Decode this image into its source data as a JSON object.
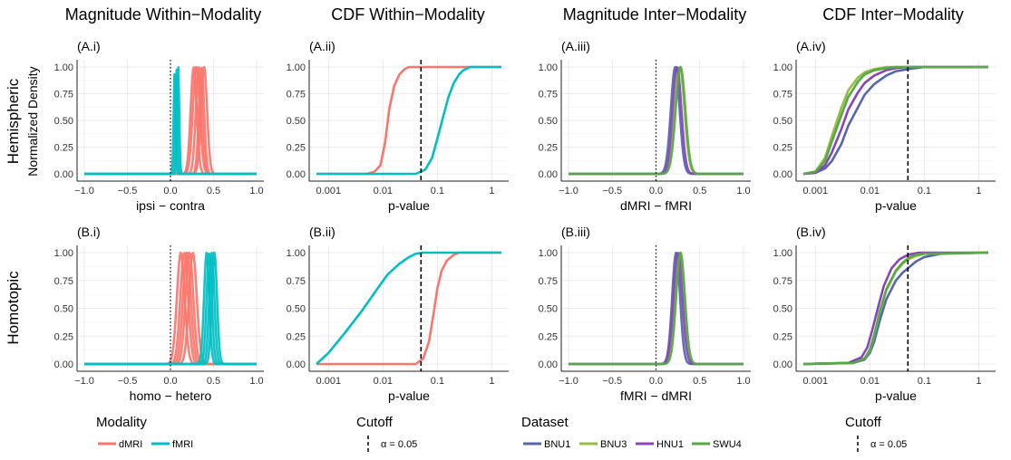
{
  "figure": {
    "column_titles": [
      "Magnitude Within−Modality",
      "CDF Within−Modality",
      "Magnitude Inter−Modality",
      "CDF Inter−Modality"
    ],
    "row_labels": [
      "Hemispheric",
      "Homotopic"
    ],
    "y_axis_label": "Normalized Density"
  },
  "legends": {
    "modality": {
      "title": "Modality",
      "items": [
        {
          "label": "dMRI",
          "color": "#F8766D"
        },
        {
          "label": "fMRI",
          "color": "#00BFC4"
        }
      ]
    },
    "cutoff_left": {
      "title": "Cutoff",
      "label": "α = 0.05"
    },
    "dataset": {
      "title": "Dataset",
      "items": [
        {
          "label": "BNU1",
          "color": "#5566AA"
        },
        {
          "label": "BNU3",
          "color": "#99BB44"
        },
        {
          "label": "HNU1",
          "color": "#8844BB"
        },
        {
          "label": "SWU4",
          "color": "#55AA44"
        }
      ]
    },
    "cutoff_right": {
      "title": "Cutoff",
      "label": "α = 0.05"
    }
  },
  "chart_data": [
    {
      "panel": "(A.i)",
      "type": "density",
      "xlabel": "ipsi − contra",
      "xlim": [
        -1,
        1
      ],
      "ylim": [
        0,
        1
      ],
      "xticks": [
        "−1.0",
        "−0.5",
        "0.0",
        "0.5",
        "1.0"
      ],
      "yticks": [
        "0.00",
        "0.25",
        "0.50",
        "0.75",
        "1.00"
      ],
      "reference_line": {
        "x": 0,
        "style": "dotted"
      },
      "series": [
        {
          "name": "dMRI",
          "curves": [
            {
              "mu": 0.27,
              "sd": 0.035
            },
            {
              "mu": 0.3,
              "sd": 0.04
            },
            {
              "mu": 0.33,
              "sd": 0.035
            },
            {
              "mu": 0.36,
              "sd": 0.03
            },
            {
              "mu": 0.39,
              "sd": 0.035
            }
          ]
        },
        {
          "name": "fMRI",
          "curves": [
            {
              "mu": 0.05,
              "sd": 0.012
            },
            {
              "mu": 0.07,
              "sd": 0.012
            },
            {
              "mu": 0.09,
              "sd": 0.012
            }
          ]
        }
      ]
    },
    {
      "panel": "(A.ii)",
      "type": "cdf",
      "xlabel": "p-value",
      "xscale": "log",
      "xlim": [
        0.0006,
        1.5
      ],
      "ylim": [
        0,
        1
      ],
      "xticks": [
        "0.001",
        "0.01",
        "0.1",
        "1"
      ],
      "yticks": [
        "0.00",
        "0.25",
        "0.50",
        "0.75",
        "1.00"
      ],
      "reference_line": {
        "x": 0.05,
        "style": "dashed"
      },
      "series": [
        {
          "name": "dMRI",
          "x": [
            0.0006,
            0.005,
            0.007,
            0.009,
            0.011,
            0.013,
            0.016,
            0.02,
            0.025,
            0.03,
            0.04,
            1.5
          ],
          "y": [
            0,
            0,
            0.02,
            0.08,
            0.3,
            0.6,
            0.82,
            0.93,
            0.98,
            1,
            1,
            1
          ]
        },
        {
          "name": "fMRI",
          "x": [
            0.0006,
            0.04,
            0.06,
            0.08,
            0.1,
            0.13,
            0.16,
            0.2,
            0.25,
            0.3,
            0.4,
            1.5
          ],
          "y": [
            0,
            0,
            0.04,
            0.15,
            0.33,
            0.55,
            0.72,
            0.85,
            0.93,
            0.97,
            1,
            1
          ]
        }
      ]
    },
    {
      "panel": "(A.iii)",
      "type": "density",
      "xlabel": "dMRI − fMRI",
      "xlim": [
        -1,
        1
      ],
      "ylim": [
        0,
        1
      ],
      "xticks": [
        "−1.0",
        "−0.5",
        "0.0",
        "0.5",
        "1.0"
      ],
      "yticks": [
        "0.00",
        "0.25",
        "0.50",
        "0.75",
        "1.00"
      ],
      "reference_line": {
        "x": 0,
        "style": "dotted"
      },
      "series": [
        {
          "name": "BNU1",
          "curves": [
            {
              "mu": 0.22,
              "sd": 0.05
            }
          ]
        },
        {
          "name": "BNU3",
          "curves": [
            {
              "mu": 0.27,
              "sd": 0.055
            }
          ]
        },
        {
          "name": "HNU1",
          "curves": [
            {
              "mu": 0.24,
              "sd": 0.05
            }
          ]
        },
        {
          "name": "SWU4",
          "curves": [
            {
              "mu": 0.28,
              "sd": 0.055
            }
          ]
        }
      ]
    },
    {
      "panel": "(A.iv)",
      "type": "cdf",
      "xlabel": "p-value",
      "xscale": "log",
      "xlim": [
        0.0006,
        1.5
      ],
      "ylim": [
        0,
        1
      ],
      "xticks": [
        "0.001",
        "0.01",
        "0.1",
        "1"
      ],
      "yticks": [
        "0.00",
        "0.25",
        "0.50",
        "0.75",
        "1.00"
      ],
      "reference_line": {
        "x": 0.05,
        "style": "dashed"
      },
      "series": [
        {
          "name": "BNU1",
          "x": [
            0.0006,
            0.001,
            0.0015,
            0.002,
            0.003,
            0.004,
            0.006,
            0.008,
            0.012,
            0.02,
            0.03,
            0.05,
            0.1,
            1.5
          ],
          "y": [
            0,
            0.01,
            0.05,
            0.12,
            0.28,
            0.45,
            0.62,
            0.74,
            0.84,
            0.92,
            0.96,
            0.98,
            1,
            1
          ]
        },
        {
          "name": "BNU3",
          "x": [
            0.0006,
            0.001,
            0.0015,
            0.002,
            0.003,
            0.004,
            0.006,
            0.008,
            0.012,
            0.02,
            0.04,
            1.5
          ],
          "y": [
            0,
            0.02,
            0.15,
            0.35,
            0.62,
            0.78,
            0.9,
            0.95,
            0.98,
            1,
            1,
            1
          ]
        },
        {
          "name": "HNU1",
          "x": [
            0.0006,
            0.001,
            0.0015,
            0.002,
            0.003,
            0.004,
            0.006,
            0.008,
            0.012,
            0.02,
            0.03,
            0.05,
            1.5
          ],
          "y": [
            0,
            0.01,
            0.08,
            0.2,
            0.42,
            0.6,
            0.76,
            0.85,
            0.92,
            0.97,
            0.99,
            1,
            1
          ]
        },
        {
          "name": "SWU4",
          "x": [
            0.0006,
            0.001,
            0.0015,
            0.002,
            0.003,
            0.004,
            0.006,
            0.008,
            0.012,
            0.02,
            0.03,
            1.5
          ],
          "y": [
            0,
            0.02,
            0.12,
            0.3,
            0.55,
            0.72,
            0.86,
            0.93,
            0.97,
            0.99,
            1,
            1
          ]
        }
      ]
    },
    {
      "panel": "(B.i)",
      "type": "density",
      "xlabel": "homo − hetero",
      "xlim": [
        -1,
        1
      ],
      "ylim": [
        0,
        1
      ],
      "xticks": [
        "−1.0",
        "−0.5",
        "0.0",
        "0.5",
        "1.0"
      ],
      "yticks": [
        "0.00",
        "0.25",
        "0.50",
        "0.75",
        "1.00"
      ],
      "reference_line": {
        "x": 0,
        "style": "dotted"
      },
      "series": [
        {
          "name": "dMRI",
          "curves": [
            {
              "mu": 0.12,
              "sd": 0.045
            },
            {
              "mu": 0.16,
              "sd": 0.045
            },
            {
              "mu": 0.19,
              "sd": 0.045
            },
            {
              "mu": 0.22,
              "sd": 0.045
            },
            {
              "mu": 0.26,
              "sd": 0.045
            }
          ]
        },
        {
          "name": "fMRI",
          "curves": [
            {
              "mu": 0.42,
              "sd": 0.03
            },
            {
              "mu": 0.45,
              "sd": 0.03
            },
            {
              "mu": 0.48,
              "sd": 0.03
            },
            {
              "mu": 0.51,
              "sd": 0.03
            }
          ]
        }
      ]
    },
    {
      "panel": "(B.ii)",
      "type": "cdf",
      "xlabel": "p-value",
      "xscale": "log",
      "xlim": [
        0.0006,
        1.5
      ],
      "ylim": [
        0,
        1
      ],
      "xticks": [
        "0.001",
        "0.01",
        "0.1",
        "1"
      ],
      "yticks": [
        "0.00",
        "0.25",
        "0.50",
        "0.75",
        "1.00"
      ],
      "reference_line": {
        "x": 0.05,
        "style": "dashed"
      },
      "series": [
        {
          "name": "dMRI",
          "x": [
            0.0006,
            0.04,
            0.055,
            0.07,
            0.085,
            0.1,
            0.12,
            0.15,
            0.2,
            0.25,
            0.35,
            1.5
          ],
          "y": [
            0,
            0,
            0.05,
            0.2,
            0.45,
            0.68,
            0.84,
            0.93,
            0.98,
            1,
            1,
            1
          ]
        },
        {
          "name": "fMRI",
          "x": [
            0.0006,
            0.001,
            0.002,
            0.004,
            0.008,
            0.012,
            0.02,
            0.03,
            0.04,
            0.055,
            0.08,
            1.5
          ],
          "y": [
            0,
            0.1,
            0.28,
            0.47,
            0.68,
            0.8,
            0.9,
            0.96,
            0.99,
            1,
            1,
            1
          ]
        }
      ]
    },
    {
      "panel": "(B.iii)",
      "type": "density",
      "xlabel": "fMRI − dMRI",
      "xlim": [
        -1,
        1
      ],
      "ylim": [
        0,
        1
      ],
      "xticks": [
        "−1.0",
        "−0.5",
        "0.0",
        "0.5",
        "1.0"
      ],
      "yticks": [
        "0.00",
        "0.25",
        "0.50",
        "0.75",
        "1.00"
      ],
      "reference_line": {
        "x": 0,
        "style": "dotted"
      },
      "series": [
        {
          "name": "BNU1",
          "curves": [
            {
              "mu": 0.23,
              "sd": 0.045
            }
          ]
        },
        {
          "name": "BNU3",
          "curves": [
            {
              "mu": 0.27,
              "sd": 0.05
            }
          ]
        },
        {
          "name": "HNU1",
          "curves": [
            {
              "mu": 0.25,
              "sd": 0.05
            }
          ]
        },
        {
          "name": "SWU4",
          "curves": [
            {
              "mu": 0.28,
              "sd": 0.05
            }
          ]
        }
      ]
    },
    {
      "panel": "(B.iv)",
      "type": "cdf",
      "xlabel": "p-value",
      "xscale": "log",
      "xlim": [
        0.0006,
        1.5
      ],
      "ylim": [
        0,
        1
      ],
      "xticks": [
        "0.001",
        "0.01",
        "0.1",
        "1"
      ],
      "yticks": [
        "0.00",
        "0.25",
        "0.50",
        "0.75",
        "1.00"
      ],
      "reference_line": {
        "x": 0.05,
        "style": "dashed"
      },
      "series": [
        {
          "name": "BNU1",
          "x": [
            0.0006,
            0.005,
            0.008,
            0.01,
            0.012,
            0.015,
            0.02,
            0.03,
            0.04,
            0.05,
            0.07,
            0.1,
            0.2,
            1.5
          ],
          "y": [
            0,
            0.01,
            0.04,
            0.1,
            0.2,
            0.38,
            0.58,
            0.75,
            0.82,
            0.86,
            0.92,
            0.96,
            0.99,
            1
          ]
        },
        {
          "name": "BNU3",
          "x": [
            0.0006,
            0.005,
            0.008,
            0.01,
            0.012,
            0.015,
            0.02,
            0.03,
            0.04,
            0.05,
            0.07,
            0.1,
            1.5
          ],
          "y": [
            0,
            0.01,
            0.05,
            0.12,
            0.25,
            0.45,
            0.66,
            0.83,
            0.9,
            0.94,
            0.97,
            0.99,
            1
          ]
        },
        {
          "name": "HNU1",
          "x": [
            0.0006,
            0.004,
            0.007,
            0.009,
            0.011,
            0.014,
            0.018,
            0.025,
            0.035,
            0.05,
            0.08,
            1.5
          ],
          "y": [
            0,
            0.01,
            0.06,
            0.15,
            0.3,
            0.5,
            0.7,
            0.86,
            0.94,
            0.98,
            1,
            1
          ]
        },
        {
          "name": "SWU4",
          "x": [
            0.0006,
            0.005,
            0.008,
            0.01,
            0.012,
            0.015,
            0.02,
            0.03,
            0.04,
            0.05,
            0.07,
            0.1,
            1.5
          ],
          "y": [
            0,
            0.01,
            0.05,
            0.13,
            0.26,
            0.46,
            0.67,
            0.84,
            0.91,
            0.95,
            0.98,
            0.99,
            1
          ]
        }
      ]
    }
  ]
}
